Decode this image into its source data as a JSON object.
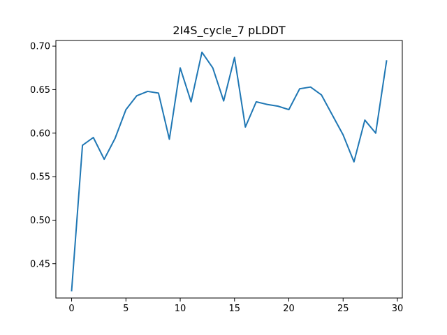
{
  "chart_data": {
    "type": "line",
    "title": "2I4S_cycle_7 pLDDT",
    "xlabel": "",
    "ylabel": "",
    "xlim": [
      -1.45,
      30.45
    ],
    "ylim": [
      0.4105,
      0.7065
    ],
    "x_ticks": [
      0,
      5,
      10,
      15,
      20,
      25,
      30
    ],
    "y_ticks": [
      0.45,
      0.5,
      0.55,
      0.6,
      0.65,
      0.7
    ],
    "x_tick_labels": [
      "0",
      "5",
      "10",
      "15",
      "20",
      "25",
      "30"
    ],
    "y_tick_labels": [
      "0.45",
      "0.50",
      "0.55",
      "0.60",
      "0.65",
      "0.70"
    ],
    "grid": false,
    "legend": "none",
    "series": [
      {
        "color": "#1f77b4",
        "x": [
          0,
          1,
          2,
          3,
          4,
          5,
          6,
          7,
          8,
          9,
          10,
          11,
          12,
          13,
          14,
          15,
          16,
          17,
          18,
          19,
          20,
          21,
          22,
          23,
          24,
          25,
          26,
          27,
          28,
          29
        ],
        "y": [
          0.419,
          0.586,
          0.595,
          0.57,
          0.594,
          0.627,
          0.643,
          0.648,
          0.646,
          0.593,
          0.675,
          0.636,
          0.693,
          0.675,
          0.637,
          0.687,
          0.607,
          0.636,
          0.633,
          0.631,
          0.627,
          0.651,
          0.653,
          0.644,
          0.621,
          0.598,
          0.567,
          0.615,
          0.6,
          0.683
        ]
      }
    ]
  }
}
